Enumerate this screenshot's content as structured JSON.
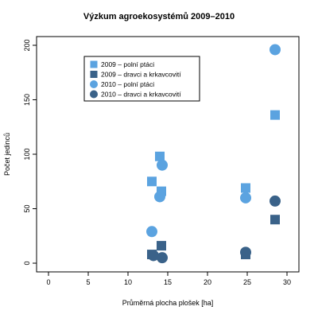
{
  "chart_data": {
    "type": "scatter",
    "title": "Výzkum agroekosystémů 2009–2010",
    "xlabel": "Průměrná plocha plošek [ha]",
    "ylabel": "Počet jedinců",
    "xlim": [
      -1.5,
      31.5
    ],
    "ylim": [
      -8,
      208
    ],
    "x_ticks": [
      0,
      5,
      10,
      15,
      20,
      25,
      30
    ],
    "y_ticks": [
      0,
      50,
      100,
      150,
      200
    ],
    "grid": false,
    "legend_position": "top-left",
    "series": [
      {
        "name": "2009 – polní ptáci",
        "marker": "square",
        "color": "#5ba3e0",
        "points": [
          [
            13,
            75
          ],
          [
            14,
            98
          ],
          [
            14.2,
            66
          ],
          [
            24.8,
            69
          ],
          [
            28.5,
            136
          ]
        ]
      },
      {
        "name": "2009 – dravci a krkavcovití",
        "marker": "square",
        "color": "#3a6289",
        "points": [
          [
            13,
            8
          ],
          [
            14.2,
            16
          ],
          [
            24.8,
            8
          ],
          [
            28.5,
            40
          ]
        ]
      },
      {
        "name": "2010 – polní ptáci",
        "marker": "circle",
        "color": "#5ba3e0",
        "points": [
          [
            13,
            29
          ],
          [
            14,
            61
          ],
          [
            14.3,
            90
          ],
          [
            24.8,
            60
          ],
          [
            28.5,
            196
          ]
        ]
      },
      {
        "name": "2010 – dravci a krkavcovití",
        "marker": "circle",
        "color": "#3a6289",
        "points": [
          [
            13.2,
            7
          ],
          [
            14.3,
            5
          ],
          [
            24.8,
            10
          ],
          [
            28.5,
            57
          ]
        ]
      }
    ]
  }
}
